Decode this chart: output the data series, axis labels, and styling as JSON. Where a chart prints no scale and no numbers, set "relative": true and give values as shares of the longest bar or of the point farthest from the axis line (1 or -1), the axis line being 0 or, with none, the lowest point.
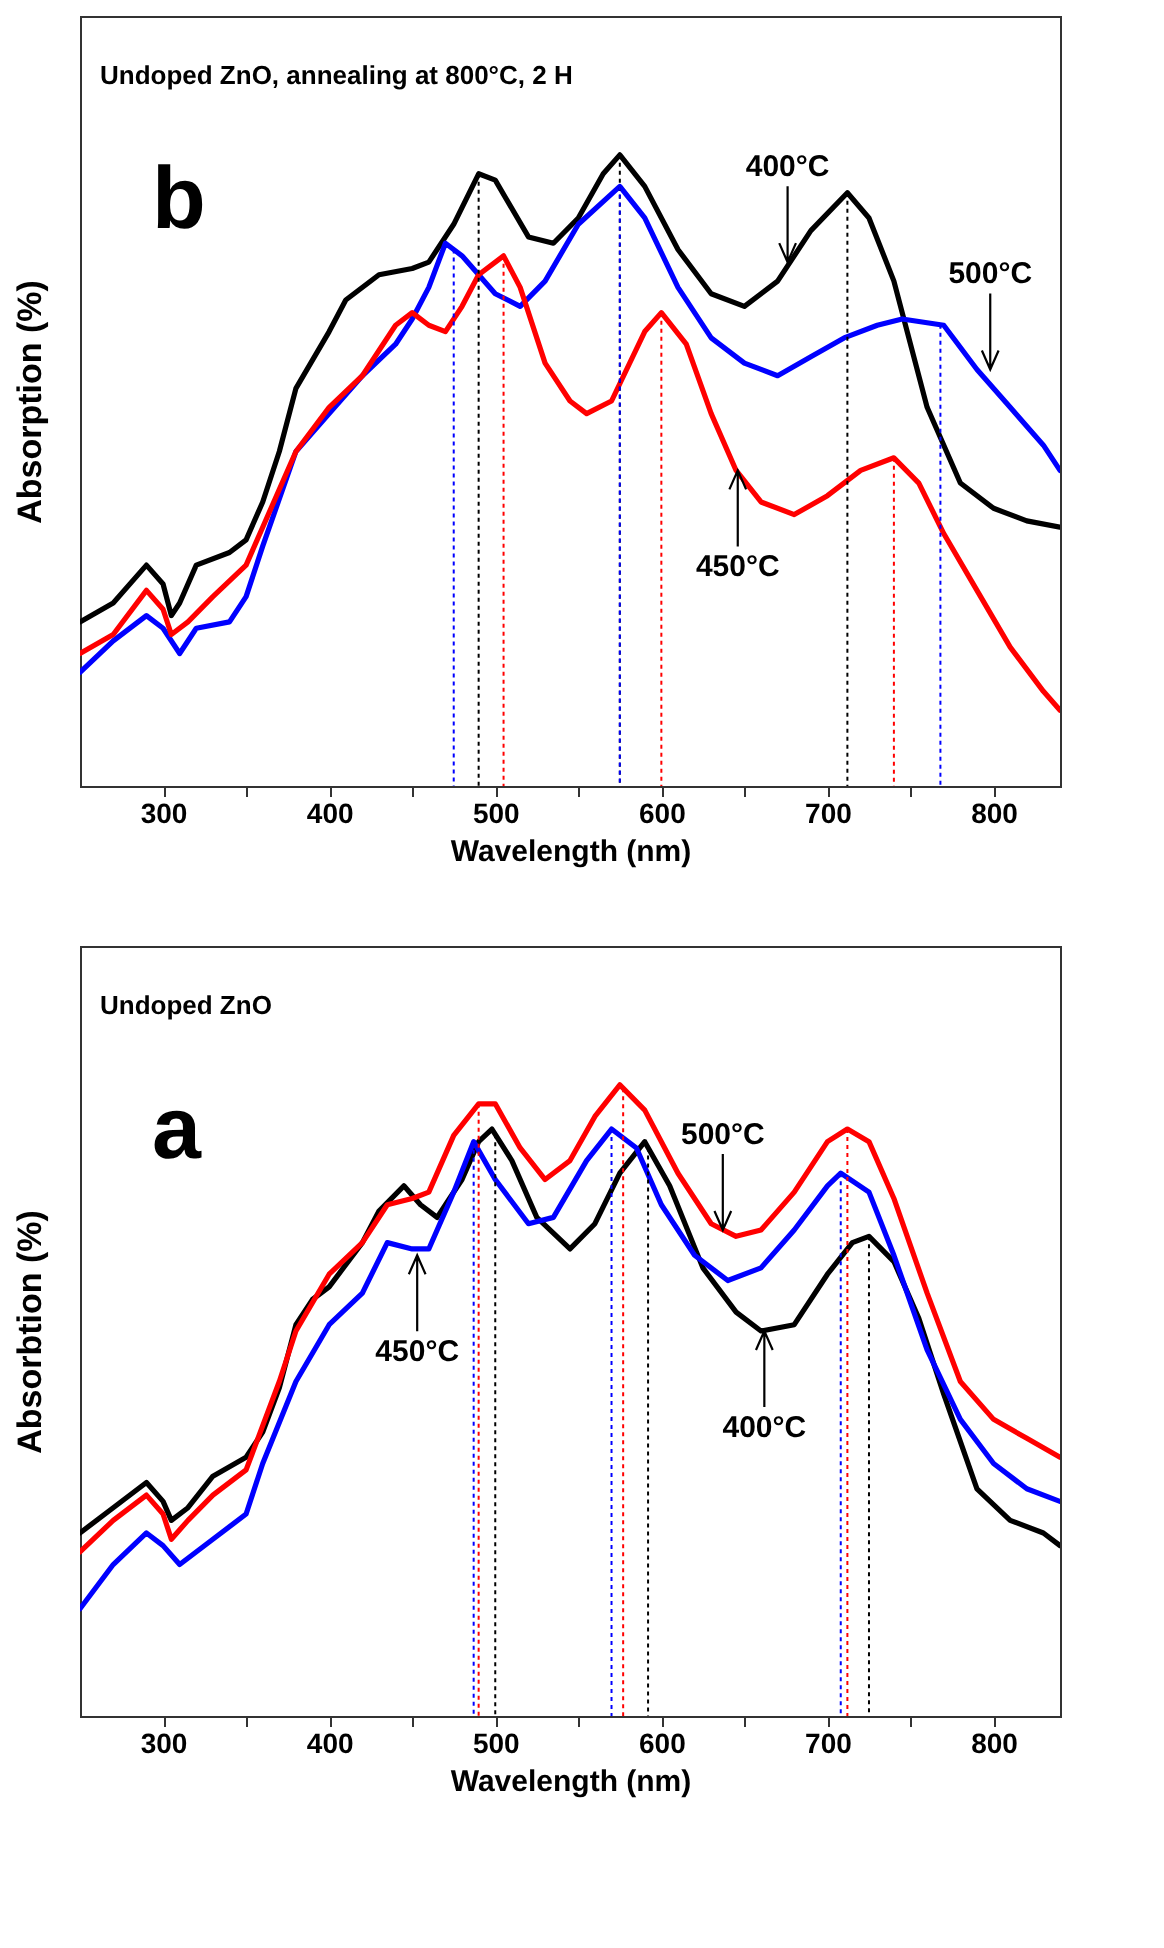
{
  "chart_data": [
    {
      "type": "line",
      "title": "Undoped ZnO, annealing at 800°C, 2 H",
      "xlabel": "Wavelength (nm)",
      "ylabel": "Absorption (%)",
      "relative": true,
      "xlim": [
        250,
        840
      ],
      "xticks": [
        300,
        {
          "value": 350,
          "label": null
        },
        400,
        {
          "value": 450,
          "label": null
        },
        500,
        {
          "value": 550,
          "label": null
        },
        600,
        {
          "value": 650,
          "label": null
        },
        700,
        {
          "value": 750,
          "label": null
        },
        800
      ],
      "series": [
        {
          "color": "#000000",
          "x": [
            250,
            270,
            290,
            300,
            305,
            310,
            320,
            340,
            350,
            360,
            370,
            380,
            400,
            410,
            430,
            450,
            460,
            475,
            490,
            500,
            520,
            535,
            550,
            565,
            575,
            590,
            610,
            630,
            650,
            670,
            690,
            712,
            725,
            740,
            760,
            780,
            800,
            820,
            840
          ],
          "values": [
            0.26,
            0.29,
            0.35,
            0.32,
            0.27,
            0.29,
            0.35,
            0.37,
            0.39,
            0.45,
            0.53,
            0.63,
            0.72,
            0.77,
            0.81,
            0.82,
            0.83,
            0.89,
            0.97,
            0.96,
            0.87,
            0.86,
            0.9,
            0.97,
            1.0,
            0.95,
            0.85,
            0.78,
            0.76,
            0.8,
            0.88,
            0.94,
            0.9,
            0.8,
            0.6,
            0.48,
            0.44,
            0.42,
            0.41
          ]
        },
        {
          "color": "#0000ff",
          "x": [
            250,
            270,
            290,
            300,
            310,
            320,
            340,
            350,
            360,
            380,
            400,
            420,
            440,
            450,
            460,
            470,
            480,
            500,
            515,
            530,
            550,
            575,
            590,
            610,
            630,
            650,
            670,
            690,
            710,
            730,
            745,
            770,
            790,
            810,
            830,
            840
          ],
          "values": [
            0.18,
            0.23,
            0.27,
            0.25,
            0.21,
            0.25,
            0.26,
            0.3,
            0.38,
            0.53,
            0.59,
            0.65,
            0.7,
            0.74,
            0.79,
            0.86,
            0.84,
            0.78,
            0.76,
            0.8,
            0.89,
            0.95,
            0.9,
            0.79,
            0.71,
            0.67,
            0.65,
            0.68,
            0.71,
            0.73,
            0.74,
            0.73,
            0.66,
            0.6,
            0.54,
            0.5
          ]
        },
        {
          "color": "#ff0000",
          "x": [
            250,
            270,
            290,
            300,
            305,
            315,
            330,
            350,
            360,
            380,
            400,
            420,
            440,
            450,
            460,
            470,
            480,
            490,
            505,
            515,
            530,
            545,
            555,
            570,
            590,
            600,
            615,
            630,
            645,
            660,
            680,
            700,
            720,
            740,
            755,
            770,
            790,
            810,
            830,
            840
          ],
          "values": [
            0.21,
            0.24,
            0.31,
            0.28,
            0.24,
            0.26,
            0.3,
            0.35,
            0.41,
            0.53,
            0.6,
            0.65,
            0.73,
            0.75,
            0.73,
            0.72,
            0.76,
            0.81,
            0.84,
            0.79,
            0.67,
            0.61,
            0.59,
            0.61,
            0.72,
            0.75,
            0.7,
            0.59,
            0.5,
            0.45,
            0.43,
            0.46,
            0.5,
            0.52,
            0.48,
            0.4,
            0.31,
            0.22,
            0.15,
            0.12
          ]
        }
      ],
      "ref_lines": [
        {
          "axis": "x",
          "value": 475,
          "color": "#0000ff",
          "line_style": "dotted"
        },
        {
          "axis": "x",
          "value": 490,
          "color": "#000000",
          "line_style": "dotted"
        },
        {
          "axis": "x",
          "value": 505,
          "color": "#ff0000",
          "line_style": "dotted"
        },
        {
          "axis": "x",
          "value": 575,
          "color": "#000000",
          "line_style": "dotted"
        },
        {
          "axis": "x",
          "value": 575,
          "color": "#0000ff",
          "line_style": "dotted"
        },
        {
          "axis": "x",
          "value": 600,
          "color": "#ff0000",
          "line_style": "dotted"
        },
        {
          "axis": "x",
          "value": 712,
          "color": "#000000",
          "line_style": "dotted"
        },
        {
          "axis": "x",
          "value": 740,
          "color": "#ff0000",
          "line_style": "dotted"
        },
        {
          "axis": "x",
          "value": 768,
          "color": "#0000ff",
          "line_style": "dotted"
        }
      ],
      "annotations": [
        "b",
        {
          "text": "400°C",
          "x": 676,
          "y": 0.83
        },
        {
          "text": "500°C",
          "x": 798,
          "y": 0.66
        },
        {
          "text": "450°C",
          "x": 646,
          "y": 0.5
        }
      ]
    },
    {
      "type": "line",
      "title": "Undoped ZnO",
      "xlabel": "Wavelength (nm)",
      "ylabel": "Absorbtion (%)",
      "relative": true,
      "xlim": [
        250,
        840
      ],
      "xticks": [
        300,
        {
          "value": 350,
          "label": null
        },
        400,
        {
          "value": 450,
          "label": null
        },
        500,
        {
          "value": 550,
          "label": null
        },
        600,
        {
          "value": 650,
          "label": null
        },
        700,
        {
          "value": 750,
          "label": null
        },
        800
      ],
      "series": [
        {
          "color": "#000000",
          "x": [
            250,
            270,
            290,
            300,
            305,
            315,
            330,
            350,
            360,
            370,
            380,
            390,
            400,
            420,
            430,
            445,
            455,
            465,
            480,
            490,
            498,
            510,
            525,
            545,
            560,
            575,
            590,
            605,
            625,
            645,
            660,
            680,
            700,
            715,
            725,
            740,
            755,
            770,
            790,
            810,
            830,
            840
          ],
          "values": [
            0.29,
            0.33,
            0.37,
            0.34,
            0.31,
            0.33,
            0.38,
            0.41,
            0.45,
            0.52,
            0.62,
            0.66,
            0.68,
            0.75,
            0.8,
            0.84,
            0.81,
            0.79,
            0.85,
            0.91,
            0.93,
            0.88,
            0.79,
            0.74,
            0.78,
            0.86,
            0.91,
            0.84,
            0.71,
            0.64,
            0.61,
            0.62,
            0.7,
            0.75,
            0.76,
            0.72,
            0.63,
            0.51,
            0.36,
            0.31,
            0.29,
            0.27
          ]
        },
        {
          "color": "#ff0000",
          "x": [
            250,
            270,
            290,
            300,
            305,
            315,
            330,
            350,
            360,
            370,
            380,
            400,
            420,
            435,
            450,
            460,
            475,
            490,
            500,
            515,
            530,
            545,
            560,
            575,
            590,
            610,
            630,
            645,
            660,
            680,
            700,
            712,
            725,
            740,
            760,
            780,
            800,
            820,
            840
          ],
          "values": [
            0.26,
            0.31,
            0.35,
            0.32,
            0.28,
            0.31,
            0.35,
            0.39,
            0.46,
            0.53,
            0.61,
            0.7,
            0.75,
            0.81,
            0.82,
            0.83,
            0.92,
            0.97,
            0.97,
            0.9,
            0.85,
            0.88,
            0.95,
            1.0,
            0.96,
            0.86,
            0.78,
            0.76,
            0.77,
            0.83,
            0.91,
            0.93,
            0.91,
            0.82,
            0.67,
            0.53,
            0.47,
            0.44,
            0.41
          ]
        },
        {
          "color": "#0000ff",
          "x": [
            250,
            270,
            290,
            300,
            310,
            330,
            350,
            360,
            380,
            400,
            420,
            435,
            450,
            460,
            475,
            487,
            500,
            520,
            535,
            555,
            570,
            585,
            600,
            620,
            640,
            660,
            680,
            700,
            708,
            725,
            740,
            760,
            780,
            800,
            820,
            840
          ],
          "values": [
            0.17,
            0.24,
            0.29,
            0.27,
            0.24,
            0.28,
            0.32,
            0.4,
            0.53,
            0.62,
            0.67,
            0.75,
            0.74,
            0.74,
            0.83,
            0.91,
            0.85,
            0.78,
            0.79,
            0.88,
            0.93,
            0.9,
            0.81,
            0.73,
            0.69,
            0.71,
            0.77,
            0.84,
            0.86,
            0.83,
            0.73,
            0.58,
            0.47,
            0.4,
            0.36,
            0.34
          ]
        }
      ],
      "ref_lines": [
        {
          "axis": "x",
          "value": 487,
          "color": "#0000ff",
          "line_style": "dotted"
        },
        {
          "axis": "x",
          "value": 490,
          "color": "#ff0000",
          "line_style": "dotted"
        },
        {
          "axis": "x",
          "value": 500,
          "color": "#000000",
          "line_style": "dotted"
        },
        {
          "axis": "x",
          "value": 570,
          "color": "#0000ff",
          "line_style": "dotted"
        },
        {
          "axis": "x",
          "value": 577,
          "color": "#ff0000",
          "line_style": "dotted"
        },
        {
          "axis": "x",
          "value": 592,
          "color": "#000000",
          "line_style": "dotted"
        },
        {
          "axis": "x",
          "value": 708,
          "color": "#0000ff",
          "line_style": "dotted"
        },
        {
          "axis": "x",
          "value": 712,
          "color": "#ff0000",
          "line_style": "dotted"
        },
        {
          "axis": "x",
          "value": 725,
          "color": "#000000",
          "line_style": "dotted"
        }
      ],
      "annotations": [
        "a",
        {
          "text": "500°C",
          "x": 637,
          "y": 0.77
        },
        {
          "text": "450°C",
          "x": 453,
          "y": 0.73
        },
        {
          "text": "400°C",
          "x": 662,
          "y": 0.61
        }
      ]
    }
  ]
}
